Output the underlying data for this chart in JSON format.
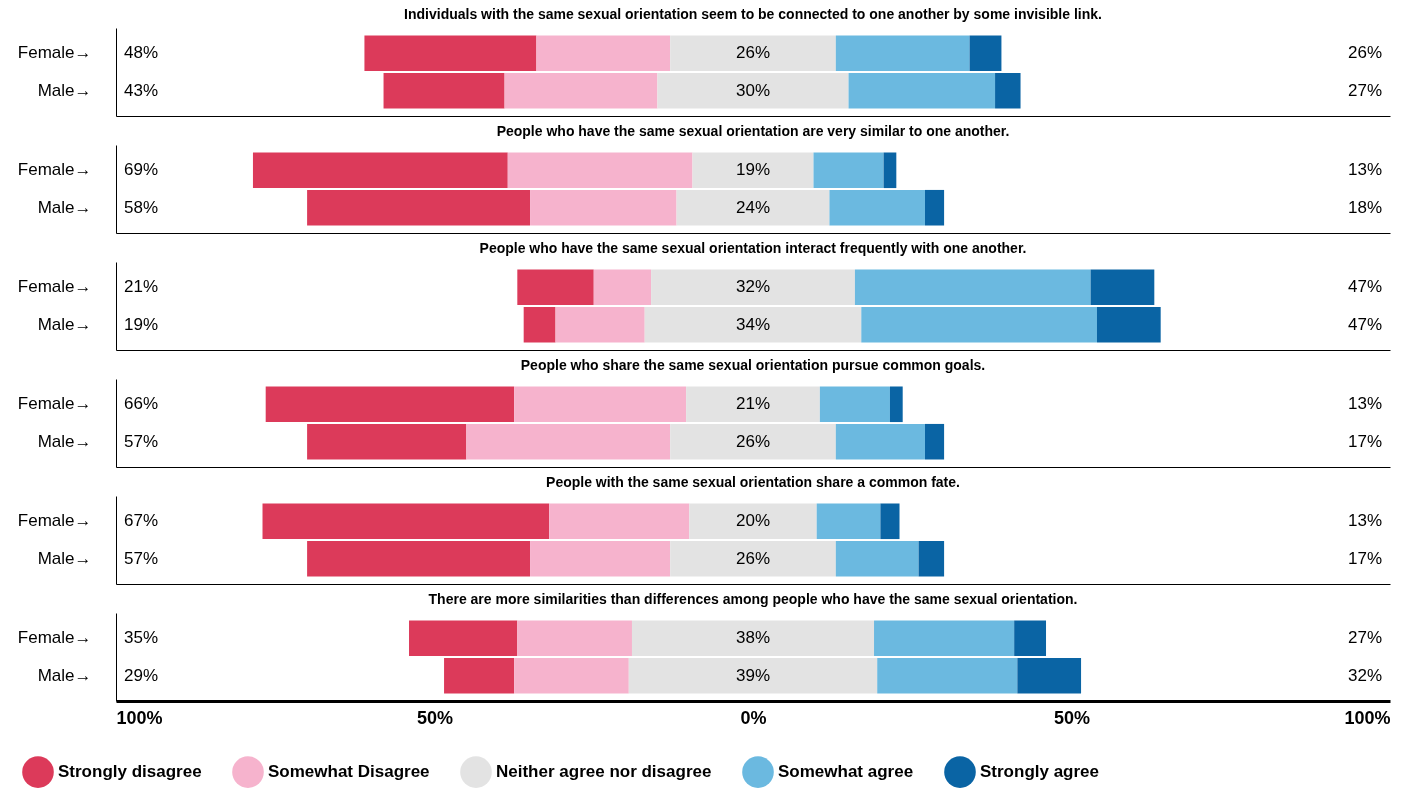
{
  "chart_data": [
    {
      "type": "bar",
      "title": "Individuals with the same sexual orientation seem to be connected to one another by some invisible link.",
      "categories": [
        "Female→",
        "Male→"
      ],
      "orientation": "horizontal",
      "xlim": [
        -100,
        100
      ],
      "tick_labels": "y",
      "series": [
        {
          "color": "#dc3a5a",
          "base": [
            -61,
            -58
          ],
          "values": [
            27,
            19
          ]
        },
        {
          "color": "#f6b3cd",
          "base": [
            -34,
            -39
          ],
          "values": [
            21,
            24
          ]
        },
        {
          "color": "#e3e3e3",
          "base": [
            -13,
            -15
          ],
          "values": [
            26,
            30
          ],
          "value_labels": [
            "26%",
            "30%"
          ]
        },
        {
          "color": "#6bb9e0",
          "base": [
            13,
            15
          ],
          "values": [
            21,
            23
          ]
        },
        {
          "color": "#0a64a4",
          "base": [
            34,
            38
          ],
          "values": [
            5,
            4
          ]
        }
      ],
      "annotations": [
        "48%",
        "43%",
        "26%",
        "27%"
      ]
    },
    {
      "type": "bar",
      "title": "People who have the same sexual orientation are very similar to one another.",
      "categories": [
        "Female→",
        "Male→"
      ],
      "orientation": "horizontal",
      "xlim": [
        -100,
        100
      ],
      "tick_labels": "y",
      "series": [
        {
          "color": "#dc3a5a",
          "base": [
            -78.5,
            -70
          ],
          "values": [
            40,
            35
          ]
        },
        {
          "color": "#f6b3cd",
          "base": [
            -38.5,
            -35
          ],
          "values": [
            29,
            23
          ]
        },
        {
          "color": "#e3e3e3",
          "base": [
            -9.5,
            -12
          ],
          "values": [
            19,
            24
          ],
          "value_labels": [
            "19%",
            "24%"
          ]
        },
        {
          "color": "#6bb9e0",
          "base": [
            9.5,
            12
          ],
          "values": [
            11,
            15
          ]
        },
        {
          "color": "#0a64a4",
          "base": [
            20.5,
            27
          ],
          "values": [
            2,
            3
          ]
        }
      ],
      "annotations": [
        "69%",
        "58%",
        "13%",
        "18%"
      ]
    },
    {
      "type": "bar",
      "title": "People who have the same sexual orientation interact frequently with one another.",
      "categories": [
        "Female→",
        "Male→"
      ],
      "orientation": "horizontal",
      "xlim": [
        -100,
        100
      ],
      "tick_labels": "y",
      "series": [
        {
          "color": "#dc3a5a",
          "base": [
            -37,
            -36
          ],
          "values": [
            12,
            5
          ]
        },
        {
          "color": "#f6b3cd",
          "base": [
            -25,
            -31
          ],
          "values": [
            9,
            14
          ]
        },
        {
          "color": "#e3e3e3",
          "base": [
            -16,
            -17
          ],
          "values": [
            32,
            34
          ],
          "value_labels": [
            "32%",
            "34%"
          ]
        },
        {
          "color": "#6bb9e0",
          "base": [
            16,
            17
          ],
          "values": [
            37,
            37
          ]
        },
        {
          "color": "#0a64a4",
          "base": [
            53,
            54
          ],
          "values": [
            10,
            10
          ]
        }
      ],
      "annotations": [
        "21%",
        "19%",
        "47%",
        "47%"
      ]
    },
    {
      "type": "bar",
      "title": "People who share the same sexual orientation pursue common goals.",
      "categories": [
        "Female→",
        "Male→"
      ],
      "orientation": "horizontal",
      "xlim": [
        -100,
        100
      ],
      "tick_labels": "y",
      "series": [
        {
          "color": "#dc3a5a",
          "base": [
            -76.5,
            -70
          ],
          "values": [
            39,
            25
          ]
        },
        {
          "color": "#f6b3cd",
          "base": [
            -37.5,
            -45
          ],
          "values": [
            27,
            32
          ]
        },
        {
          "color": "#e3e3e3",
          "base": [
            -10.5,
            -13
          ],
          "values": [
            21,
            26
          ],
          "value_labels": [
            "21%",
            "26%"
          ]
        },
        {
          "color": "#6bb9e0",
          "base": [
            10.5,
            13
          ],
          "values": [
            11,
            14
          ]
        },
        {
          "color": "#0a64a4",
          "base": [
            21.5,
            27
          ],
          "values": [
            2,
            3
          ]
        }
      ],
      "annotations": [
        "66%",
        "57%",
        "13%",
        "17%"
      ]
    },
    {
      "type": "bar",
      "title": "People with the same sexual orientation share a common fate.",
      "categories": [
        "Female→",
        "Male→"
      ],
      "orientation": "horizontal",
      "xlim": [
        -100,
        100
      ],
      "tick_labels": "y",
      "series": [
        {
          "color": "#dc3a5a",
          "base": [
            -77,
            -70
          ],
          "values": [
            45,
            35
          ]
        },
        {
          "color": "#f6b3cd",
          "base": [
            -32,
            -35
          ],
          "values": [
            22,
            22
          ]
        },
        {
          "color": "#e3e3e3",
          "base": [
            -10,
            -13
          ],
          "values": [
            20,
            26
          ],
          "value_labels": [
            "20%",
            "26%"
          ]
        },
        {
          "color": "#6bb9e0",
          "base": [
            10,
            13
          ],
          "values": [
            10,
            13
          ]
        },
        {
          "color": "#0a64a4",
          "base": [
            20,
            26
          ],
          "values": [
            3,
            4
          ]
        }
      ],
      "annotations": [
        "67%",
        "57%",
        "13%",
        "17%"
      ]
    },
    {
      "type": "bar",
      "title": "There are more similarities than differences among people who have the same sexual orientation.",
      "categories": [
        "Female→",
        "Male→"
      ],
      "orientation": "horizontal",
      "xlim": [
        -100,
        100
      ],
      "xticks": [
        {
          "value": -100,
          "label": "100%"
        },
        {
          "value": -50,
          "label": "50%"
        },
        {
          "value": 0,
          "label": "0%"
        },
        {
          "value": 50,
          "label": "50%"
        },
        {
          "value": 100,
          "label": "100%"
        }
      ],
      "legend": "bottom",
      "series": [
        {
          "name": "Strongly disagree",
          "color": "#dc3a5a",
          "base": [
            -54,
            -48.5
          ],
          "values": [
            17,
            11
          ]
        },
        {
          "name": "Somewhat Disagree",
          "color": "#f6b3cd",
          "base": [
            -37,
            -37.5
          ],
          "values": [
            18,
            18
          ]
        },
        {
          "name": "Neither agree nor disagree",
          "color": "#e3e3e3",
          "base": [
            -19,
            -19.5
          ],
          "values": [
            38,
            39
          ],
          "value_labels": [
            "38%",
            "39%"
          ]
        },
        {
          "name": "Somewhat agree",
          "color": "#6bb9e0",
          "base": [
            19,
            19.5
          ],
          "values": [
            22,
            22
          ]
        },
        {
          "name": "Strongly agree",
          "color": "#0a64a4",
          "base": [
            41,
            41.5
          ],
          "values": [
            5,
            10
          ]
        }
      ],
      "annotations": [
        "35%",
        "29%",
        "27%",
        "32%"
      ]
    }
  ]
}
